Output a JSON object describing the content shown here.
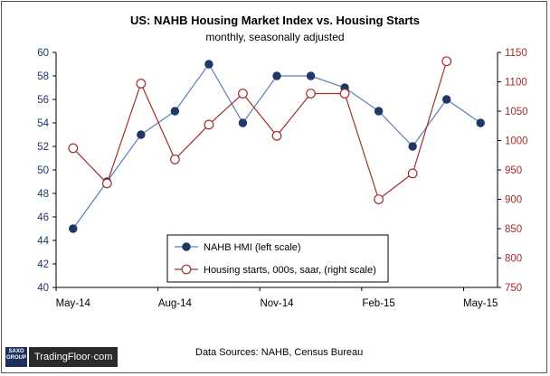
{
  "chart_data": {
    "type": "line",
    "title": "US: NAHB Housing Market Index vs. Housing Starts",
    "subtitle": "monthly, seasonally adjusted",
    "x": [
      "May-14",
      "Jun-14",
      "Jul-14",
      "Aug-14",
      "Sep-14",
      "Oct-14",
      "Nov-14",
      "Dec-14",
      "Jan-15",
      "Feb-15",
      "Mar-15",
      "Apr-15",
      "May-15"
    ],
    "x_tick_labels": [
      "May-14",
      "Aug-14",
      "Nov-14",
      "Feb-15",
      "May-15"
    ],
    "left_axis": {
      "ylim": [
        40,
        60
      ],
      "ticks": [
        "40",
        "42",
        "44",
        "46",
        "48",
        "50",
        "52",
        "54",
        "56",
        "58",
        "60"
      ],
      "color": "#1f3864"
    },
    "right_axis": {
      "ylim": [
        750,
        1150
      ],
      "ticks": [
        "750",
        "800",
        "850",
        "900",
        "950",
        "1000",
        "1050",
        "1100",
        "1150"
      ],
      "color": "#a52a2a"
    },
    "series": [
      {
        "name": "NAHB HMI (left scale)",
        "axis": "left",
        "color": "#1f3864",
        "marker": "filled-circle",
        "line_color": "#5b7fb5",
        "values": [
          45,
          49,
          53,
          55,
          59,
          54,
          58,
          58,
          57,
          55,
          52,
          56,
          54
        ]
      },
      {
        "name": "Housing starts, 000s, saar, (right scale)",
        "axis": "right",
        "color": "#a0302f",
        "marker": "hollow-circle",
        "line_color": "#a0302f",
        "values": [
          987,
          927,
          1097,
          968,
          1027,
          1080,
          1008,
          1080,
          1080,
          900,
          944,
          1135,
          null
        ]
      }
    ],
    "grid": false,
    "legend_position": "bottom-center"
  },
  "footer": {
    "sources": "Data Sources: NAHB, Census Bureau",
    "logo_mark": "SAXO GROUP",
    "logo_text": "TradingFloor·com"
  }
}
